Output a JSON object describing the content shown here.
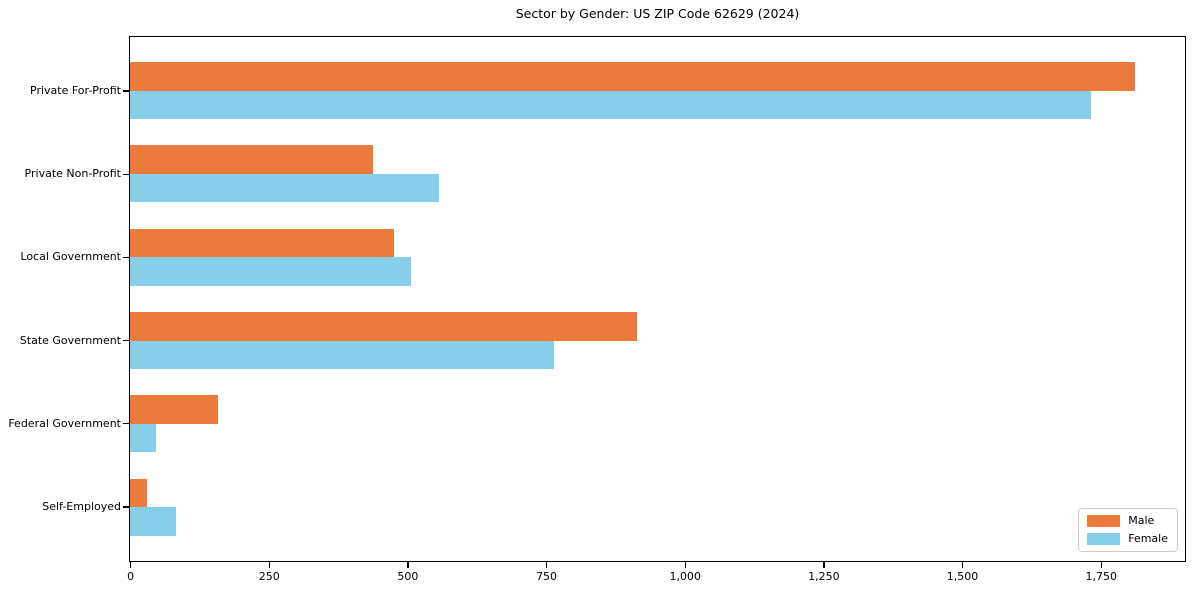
{
  "chart_data": {
    "type": "bar",
    "orientation": "horizontal",
    "title": "Sector by Gender: US ZIP Code 62629 (2024)",
    "categories": [
      "Private For-Profit",
      "Private Non-Profit",
      "Local Government",
      "State Government",
      "Federal Government",
      "Self-Employed"
    ],
    "series": [
      {
        "name": "Male",
        "color": "#EB7A3C",
        "values": [
          1810,
          437,
          476,
          913,
          158,
          30
        ]
      },
      {
        "name": "Female",
        "color": "#87CEEB",
        "values": [
          1730,
          557,
          506,
          763,
          47,
          83
        ]
      }
    ],
    "xlim": [
      0,
      1900
    ],
    "xticks": [
      0,
      250,
      500,
      750,
      1000,
      1250,
      1500,
      1750
    ],
    "xtick_labels": [
      "0",
      "250",
      "500",
      "750",
      "1,000",
      "1,250",
      "1,500",
      "1,750"
    ],
    "xlabel": "",
    "ylabel": "",
    "grid": false,
    "legend_position": "lower right",
    "colors": {
      "axis": "#000000",
      "legend_border": "#cccccc",
      "background": "#ffffff"
    }
  }
}
